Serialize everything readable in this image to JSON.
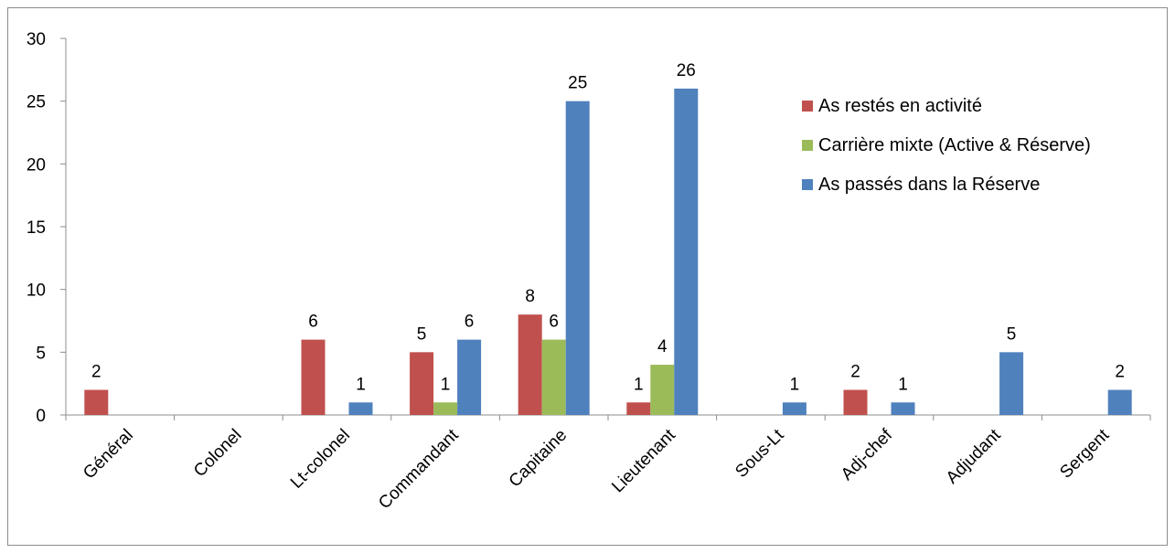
{
  "chart_data": {
    "type": "bar",
    "categories": [
      "Général",
      "Colonel",
      "Lt-colonel",
      "Commandant",
      "Capitaine",
      "Lieutenant",
      "Sous-Lt",
      "Adj-chef",
      "Adjudant",
      "Sergent"
    ],
    "series": [
      {
        "name": "As restés en activité",
        "color": "#c0504d",
        "values": [
          2,
          0,
          6,
          5,
          8,
          1,
          0,
          2,
          0,
          0
        ],
        "labels": [
          "2",
          "",
          "6",
          "5",
          "8",
          "1",
          "",
          "2",
          "",
          ""
        ]
      },
      {
        "name": "Carrière mixte (Active & Réserve)",
        "color": "#9bbb59",
        "values": [
          0,
          0,
          0,
          1,
          6,
          4,
          0,
          0,
          0,
          0
        ],
        "labels": [
          "",
          "",
          "",
          "1",
          "6",
          "4",
          "",
          "",
          "",
          ""
        ]
      },
      {
        "name": "As passés dans la Réserve",
        "color": "#4f81bd",
        "values": [
          0,
          0,
          1,
          6,
          25,
          26,
          1,
          1,
          5,
          2
        ],
        "labels": [
          "",
          "",
          "1",
          "6",
          "25",
          "26",
          "1",
          "1",
          "5",
          "2"
        ]
      }
    ],
    "ylim": [
      0,
      30
    ],
    "yticks": [
      0,
      5,
      10,
      15,
      20,
      25,
      30
    ],
    "title": "",
    "xlabel": "",
    "ylabel": "",
    "grid": false,
    "legend_position": "top-right"
  }
}
